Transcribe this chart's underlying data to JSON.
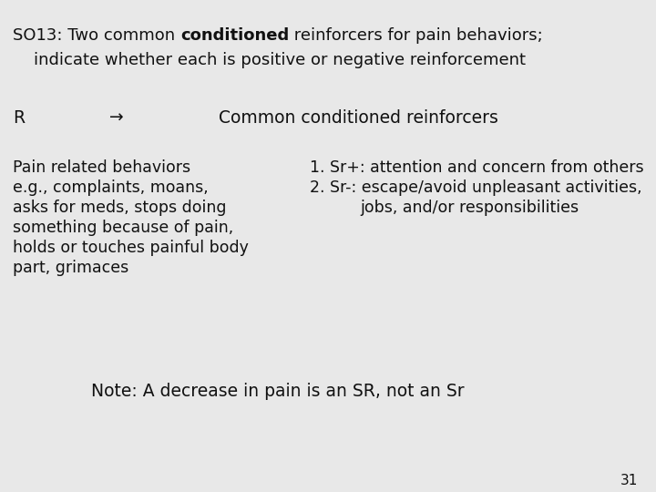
{
  "bg_color": "#e8e8e8",
  "title_line1_normal1": "SO13: Two common ",
  "title_line1_bold": "conditioned",
  "title_line1_normal2": " reinforcers for pain behaviors;",
  "title_line2": "    indicate whether each is positive or negative reinforcement",
  "r_label": "R",
  "arrow": "→",
  "reinforcers_label": "Common conditioned reinforcers",
  "left_col_lines": [
    "Pain related behaviors",
    "e.g., complaints, moans,",
    "asks for meds, stops doing",
    "something because of pain,",
    "holds or touches painful body",
    "part, grimaces"
  ],
  "right_col_line1": "1. Sr+: attention and concern from others",
  "right_col_line2": "2. Sr-: escape/avoid unpleasant activities,",
  "right_col_line3": "        jobs, and/or responsibilities",
  "note": "Note: A decrease in pain is an SR, not an Sr",
  "page_num": "31",
  "font_size_title": 13.0,
  "font_size_body": 12.5,
  "font_size_header": 13.5,
  "font_size_note": 13.5,
  "font_size_page": 11,
  "text_color": "#111111",
  "font_family": "DejaVu Sans"
}
